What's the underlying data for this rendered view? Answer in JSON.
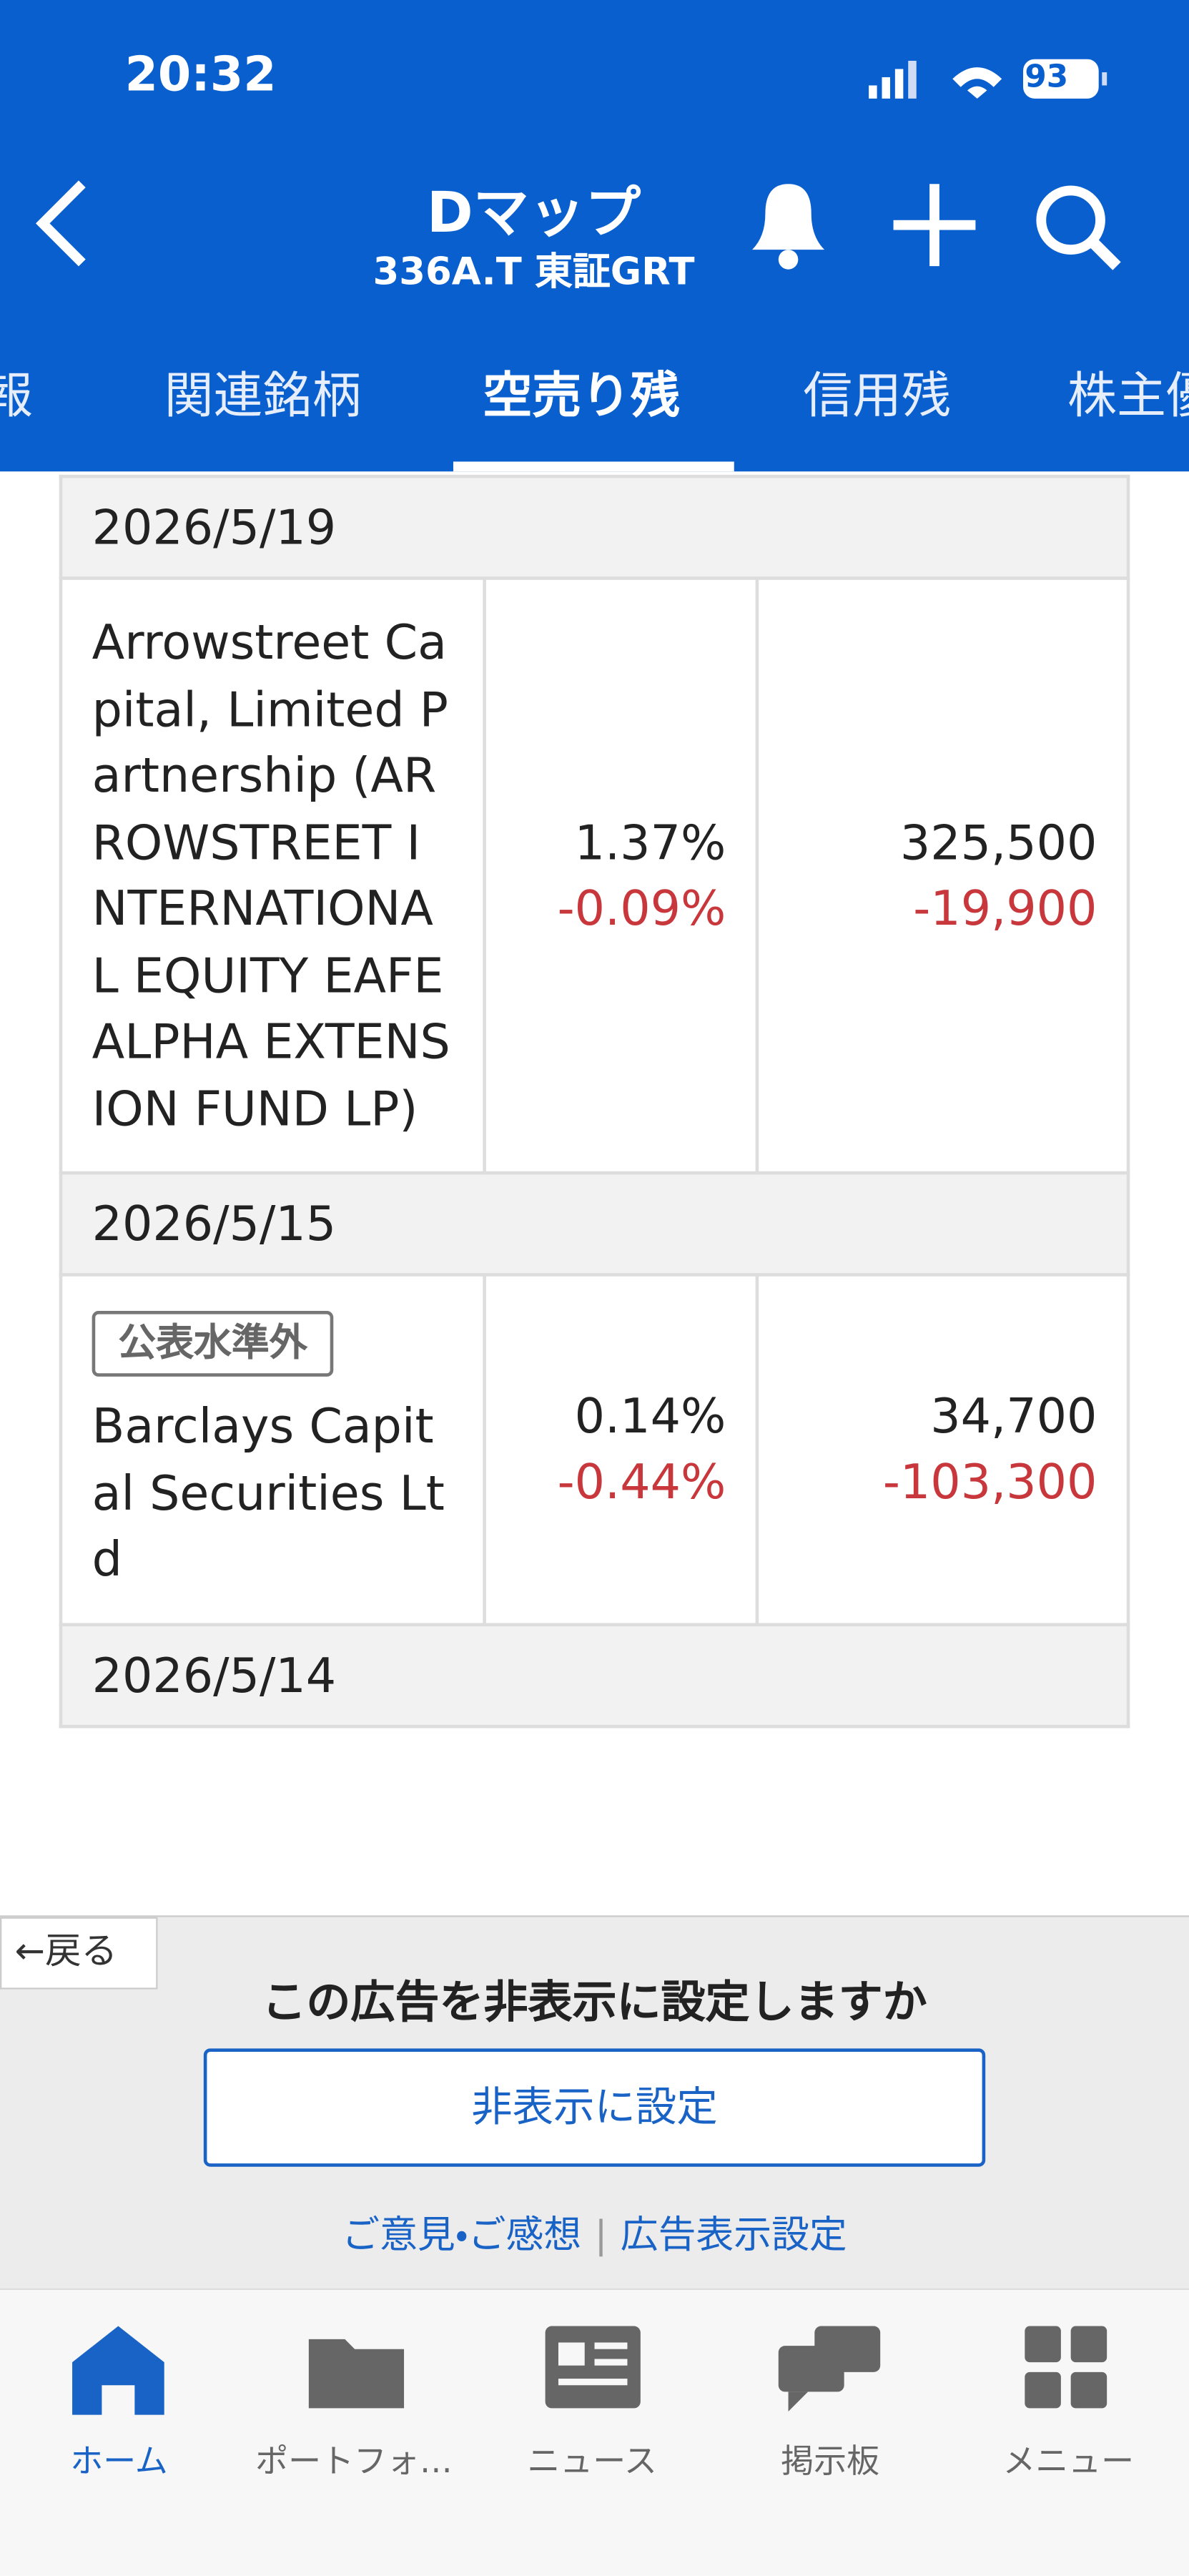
{
  "status_bar": {
    "time": "20:32",
    "battery": "93"
  },
  "header": {
    "title": "Dマップ",
    "subtitle": "336A.T 東証GRT"
  },
  "tabs": [
    "情報",
    "関連銘柄",
    "空売り残",
    "信用残",
    "株主優"
  ],
  "table": {
    "groups": [
      {
        "date": "2026/5/19",
        "rows": [
          {
            "name": "Arrowstreet Capital, Limited Partnership (ARROWSTREET INTERNATIONAL EQUITY EAFE ALPHA EXTENSION FUND LP)",
            "ratio": "1.37%",
            "ratio_change": "-0.09%",
            "shares": "325,500",
            "shares_change": "-19,900"
          }
        ]
      },
      {
        "date": "2026/5/15",
        "rows": [
          {
            "badge": "公表水準外",
            "name": "Barclays Capital Securities Ltd",
            "ratio": "0.14%",
            "ratio_change": "-0.44%",
            "shares": "34,700",
            "shares_change": "-103,300"
          }
        ]
      },
      {
        "date": "2026/5/14"
      }
    ]
  },
  "ad": {
    "back": "戻る",
    "question": "この広告を非表示に設定しますか",
    "button": "非表示に設定",
    "links": [
      "ご意見・ご感想",
      "広告表示設定"
    ]
  },
  "nav": [
    "ホーム",
    "ポートフォ…",
    "ニュース",
    "掲示板",
    "メニュー"
  ]
}
